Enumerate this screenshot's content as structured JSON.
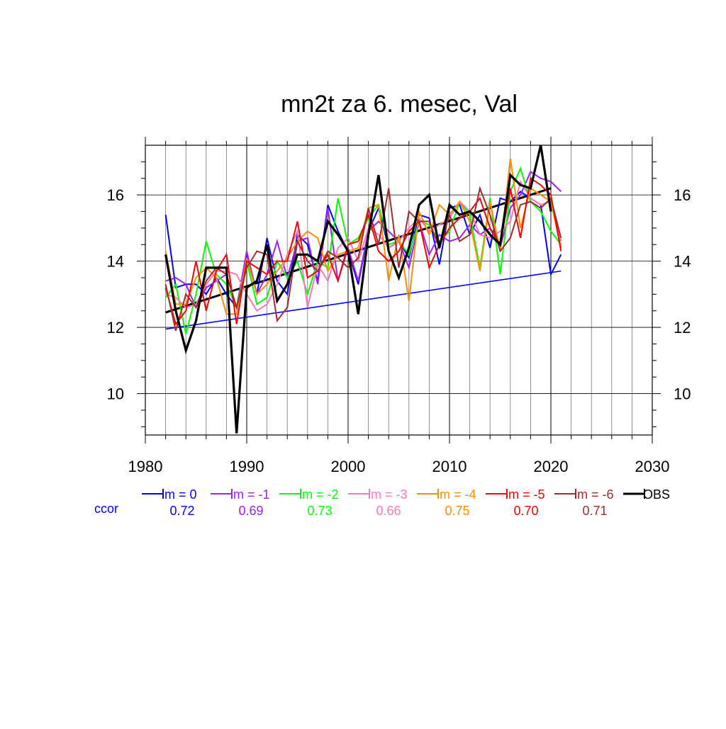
{
  "chart_data": {
    "type": "line",
    "title": "mn2t za 6. mesec, Val",
    "xlabel": "",
    "ylabel": "",
    "xlim": [
      1980,
      2030
    ],
    "ylim": [
      8.75,
      17.5
    ],
    "x_ticks": [
      1980,
      1990,
      2000,
      2010,
      2020,
      2030
    ],
    "y_ticks": [
      10,
      12,
      14,
      16
    ],
    "grid": true,
    "legend_position": "bottom",
    "ccor_label": "ccor",
    "years": [
      1982,
      1983,
      1984,
      1985,
      1986,
      1987,
      1988,
      1989,
      1990,
      1991,
      1992,
      1993,
      1994,
      1995,
      1996,
      1997,
      1998,
      1999,
      2000,
      2001,
      2002,
      2003,
      2004,
      2005,
      2006,
      2007,
      2008,
      2009,
      2010,
      2011,
      2012,
      2013,
      2014,
      2015,
      2016,
      2017,
      2018,
      2019,
      2020,
      2021
    ],
    "series": [
      {
        "name": "lm = 0",
        "ccor": "0.72",
        "color": "#0000ff",
        "values": [
          15.4,
          13.2,
          13.3,
          13.3,
          13.0,
          13.5,
          13.0,
          12.6,
          14.2,
          13.0,
          14.7,
          13.4,
          13.0,
          14.8,
          14.5,
          13.4,
          15.7,
          14.9,
          14.3,
          13.3,
          14.9,
          15.6,
          14.4,
          14.6,
          14.1,
          15.4,
          15.3,
          13.9,
          15.6,
          15.7,
          14.8,
          15.4,
          14.4,
          15.9,
          15.8,
          16.1,
          15.9,
          15.7,
          13.6,
          14.2
        ]
      },
      {
        "name": "lm = -1",
        "ccor": "0.69",
        "color": "#a020f0",
        "values": [
          13.4,
          13.5,
          13.3,
          12.6,
          13.2,
          13.4,
          13.6,
          12.6,
          14.3,
          13.0,
          13.6,
          14.6,
          13.5,
          14.6,
          14.7,
          13.3,
          15.6,
          13.4,
          14.4,
          13.4,
          14.9,
          15.2,
          14.9,
          14.6,
          13.8,
          15.2,
          14.2,
          14.8,
          14.6,
          14.7,
          15.1,
          14.8,
          15.0,
          14.4,
          15.6,
          16.0,
          16.7,
          16.5,
          16.4,
          16.1
        ]
      },
      {
        "name": "lm = -2",
        "ccor": "0.73",
        "color": "#00ff00",
        "values": [
          12.9,
          13.3,
          11.8,
          13.0,
          14.6,
          13.6,
          13.3,
          12.6,
          14.0,
          12.7,
          12.9,
          14.0,
          13.5,
          14.0,
          13.0,
          14.0,
          13.8,
          15.9,
          14.5,
          14.7,
          15.3,
          15.7,
          14.5,
          14.6,
          14.2,
          15.2,
          15.1,
          14.6,
          14.9,
          15.8,
          15.4,
          13.8,
          15.9,
          13.6,
          16.1,
          16.8,
          15.8,
          15.5,
          14.9,
          14.5
        ]
      },
      {
        "name": "lm = -3",
        "ccor": "0.66",
        "color": "#ff77b8",
        "values": [
          13.0,
          12.9,
          12.6,
          12.7,
          13.3,
          13.7,
          13.7,
          13.6,
          13.0,
          12.5,
          12.7,
          13.3,
          14.2,
          14.9,
          12.6,
          13.9,
          13.4,
          14.4,
          14.7,
          14.0,
          15.0,
          14.8,
          14.4,
          14.6,
          15.0,
          15.3,
          14.9,
          15.1,
          15.3,
          15.8,
          15.5,
          14.8,
          14.7,
          14.9,
          15.2,
          16.4,
          15.9,
          15.7,
          15.8,
          14.6
        ]
      },
      {
        "name": "lm = -4",
        "ccor": "0.75",
        "color": "#ff8c00",
        "values": [
          14.3,
          12.7,
          12.7,
          13.5,
          13.8,
          13.5,
          12.4,
          12.4,
          14.1,
          13.0,
          13.3,
          13.7,
          14.1,
          14.6,
          14.9,
          14.7,
          13.7,
          14.2,
          14.3,
          14.4,
          15.6,
          15.7,
          13.4,
          14.8,
          12.8,
          15.5,
          14.8,
          15.7,
          15.4,
          15.8,
          15.2,
          13.7,
          15.8,
          14.3,
          17.1,
          15.0,
          16.2,
          16.0,
          15.8,
          14.4
        ]
      },
      {
        "name": "lm = -5",
        "ccor": "0.70",
        "color": "#ff0000",
        "values": [
          13.2,
          12.1,
          12.5,
          14.0,
          12.5,
          13.7,
          14.2,
          12.1,
          14.0,
          13.8,
          13.6,
          14.0,
          14.0,
          15.2,
          13.5,
          13.7,
          14.2,
          13.4,
          14.5,
          14.6,
          15.4,
          14.3,
          14.0,
          14.3,
          14.9,
          15.2,
          13.8,
          14.5,
          15.0,
          15.3,
          15.5,
          15.9,
          15.0,
          14.5,
          16.2,
          14.7,
          16.5,
          16.3,
          16.0,
          14.3
        ]
      },
      {
        "name": "lm = -6",
        "ccor": "0.71",
        "color": "#a52a2a",
        "values": [
          13.3,
          11.9,
          13.0,
          12.6,
          13.4,
          13.8,
          13.6,
          12.6,
          13.8,
          14.3,
          14.2,
          12.2,
          12.6,
          14.6,
          14.0,
          13.7,
          14.3,
          14.1,
          13.8,
          14.1,
          15.6,
          14.5,
          16.2,
          13.8,
          15.5,
          15.2,
          15.2,
          14.4,
          15.4,
          14.6,
          14.8,
          16.2,
          15.4,
          14.3,
          14.7,
          15.7,
          15.8,
          15.6,
          15.9,
          14.7
        ]
      },
      {
        "name": "OBS",
        "ccor": "",
        "color": "#000000",
        "values": [
          14.2,
          12.5,
          11.3,
          12.2,
          13.8,
          13.8,
          13.8,
          8.8,
          13.2,
          13.4,
          14.5,
          12.8,
          13.3,
          14.2,
          14.2,
          14.0,
          15.2,
          14.8,
          14.3,
          12.4,
          14.8,
          16.6,
          14.3,
          13.5,
          14.4,
          15.7,
          16.0,
          14.4,
          15.7,
          15.4,
          15.5,
          15.2,
          14.8,
          14.5,
          16.6,
          16.3,
          16.2,
          17.5,
          15.5,
          null
        ]
      }
    ],
    "trend_lines": [
      {
        "name": "lm = 0 trend",
        "color": "#0000ff",
        "x": [
          1982,
          2021
        ],
        "y": [
          11.95,
          13.7
        ]
      },
      {
        "name": "OBS trend",
        "color": "#000000",
        "x": [
          1982,
          2020
        ],
        "y": [
          12.45,
          16.2
        ]
      }
    ]
  }
}
